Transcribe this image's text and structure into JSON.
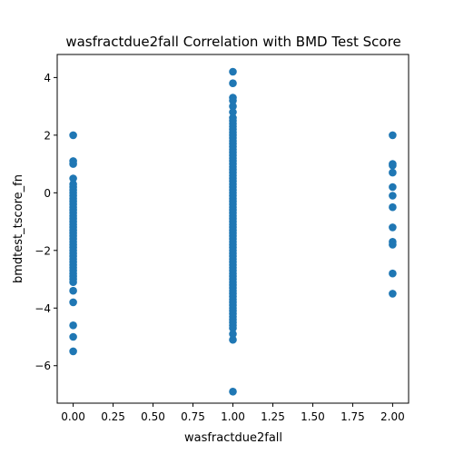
{
  "chart_data": {
    "type": "scatter",
    "title": "wasfractdue2fall Correlation with BMD Test Score",
    "xlabel": "wasfractdue2fall",
    "ylabel": "bmdtest_tscore_fn",
    "xlim": [
      -0.1,
      2.1
    ],
    "ylim": [
      -7.3,
      4.8
    ],
    "xticks": [
      0.0,
      0.25,
      0.5,
      0.75,
      1.0,
      1.25,
      1.5,
      1.75,
      2.0
    ],
    "xtick_labels": [
      "0.00",
      "0.25",
      "0.50",
      "0.75",
      "1.00",
      "1.25",
      "1.50",
      "1.75",
      "2.00"
    ],
    "yticks": [
      -6,
      -4,
      -2,
      0,
      2,
      4
    ],
    "ytick_labels": [
      "−6",
      "−4",
      "−2",
      "0",
      "2",
      "4"
    ],
    "grid": false,
    "marker_color": "#1f77b4",
    "series": [
      {
        "x": 0,
        "y": [
          2.0,
          1.1,
          1.0,
          0.5,
          0.3,
          0.2,
          0.1,
          0.0,
          -0.1,
          -0.2,
          -0.3,
          -0.4,
          -0.5,
          -0.6,
          -0.7,
          -0.8,
          -0.9,
          -1.0,
          -1.1,
          -1.2,
          -1.3,
          -1.4,
          -1.5,
          -1.6,
          -1.7,
          -1.8,
          -1.9,
          -2.0,
          -2.1,
          -2.2,
          -2.3,
          -2.4,
          -2.5,
          -2.6,
          -2.7,
          -2.8,
          -2.9,
          -3.0,
          -3.1,
          -3.4,
          -3.8,
          -4.6,
          -5.0,
          -5.5
        ]
      },
      {
        "x": 1,
        "y": [
          4.2,
          3.8,
          3.3,
          3.2,
          3.0,
          2.8,
          2.6,
          2.5,
          2.4,
          2.3,
          2.2,
          2.1,
          2.0,
          1.9,
          1.8,
          1.7,
          1.6,
          1.5,
          1.4,
          1.3,
          1.2,
          1.1,
          1.0,
          0.9,
          0.8,
          0.7,
          0.6,
          0.5,
          0.4,
          0.3,
          0.2,
          0.1,
          0.0,
          -0.1,
          -0.2,
          -0.3,
          -0.4,
          -0.5,
          -0.6,
          -0.7,
          -0.8,
          -0.9,
          -1.0,
          -1.1,
          -1.2,
          -1.3,
          -1.4,
          -1.5,
          -1.6,
          -1.7,
          -1.8,
          -1.9,
          -2.0,
          -2.1,
          -2.2,
          -2.3,
          -2.4,
          -2.5,
          -2.6,
          -2.7,
          -2.8,
          -2.9,
          -3.0,
          -3.1,
          -3.2,
          -3.3,
          -3.4,
          -3.5,
          -3.6,
          -3.7,
          -3.8,
          -3.9,
          -4.0,
          -4.1,
          -4.2,
          -4.3,
          -4.4,
          -4.5,
          -4.6,
          -4.7,
          -4.9,
          -5.1,
          -6.9
        ]
      },
      {
        "x": 2,
        "y": [
          2.0,
          1.0,
          0.95,
          0.7,
          0.2,
          -0.1,
          -0.5,
          -1.2,
          -1.7,
          -1.8,
          -2.8,
          -3.5
        ]
      }
    ]
  }
}
